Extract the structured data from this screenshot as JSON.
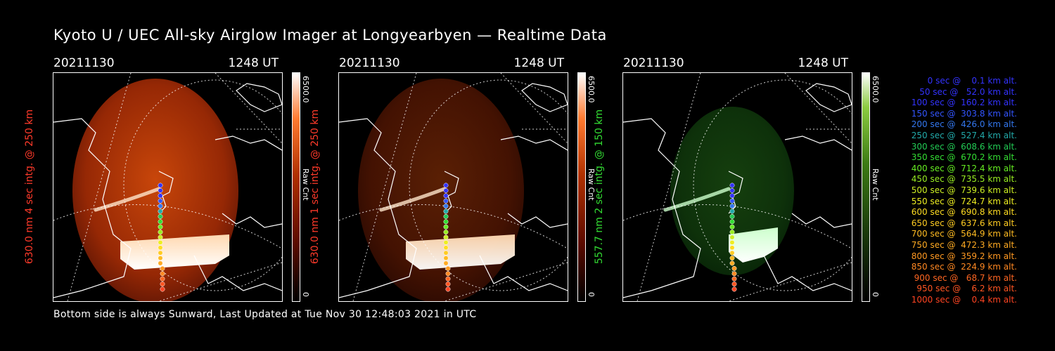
{
  "title": "Kyoto U / UEC All-sky Airglow Imager at Longyearbyen — Realtime Data",
  "footer": "Bottom side is always Sunward, Last Updated at Tue Nov 30 12:48:03 2021 in UTC",
  "panels": [
    {
      "date": "20211130",
      "time": "1248 UT",
      "ylabel": "630.0 nm 4 sec intg. @ 250 km",
      "label_color": "#ff3a2a",
      "cbar_max": "6500.0",
      "cbar_min": "0",
      "cbar_unit": "Raw Cnt",
      "scheme": "red",
      "intensity": 1.0
    },
    {
      "date": "20211130",
      "time": "1248 UT",
      "ylabel": "630.0 nm 1 sec intg. @ 250 km",
      "label_color": "#ff3a2a",
      "cbar_max": "6500.0",
      "cbar_min": "0",
      "cbar_unit": "Raw Cnt",
      "scheme": "red",
      "intensity": 0.45
    },
    {
      "date": "20211130",
      "time": "1248 UT",
      "ylabel": "557.7 nm 2 sec intg. @ 150 km",
      "label_color": "#33dd33",
      "cbar_max": "6500.0",
      "cbar_min": "0",
      "cbar_unit": "Raw Cnt",
      "scheme": "green",
      "intensity": 0.7
    }
  ],
  "legend": [
    {
      "text": "   0 sec @    0.1 km alt.",
      "color": "#3333ff"
    },
    {
      "text": "  50 sec @   52.0 km alt.",
      "color": "#3333ff"
    },
    {
      "text": " 100 sec @  160.2 km alt.",
      "color": "#3333ff"
    },
    {
      "text": " 150 sec @  303.8 km alt.",
      "color": "#3355ff"
    },
    {
      "text": " 200 sec @  426.0 km alt.",
      "color": "#3377ee"
    },
    {
      "text": " 250 sec @  527.4 km alt.",
      "color": "#22aaaa"
    },
    {
      "text": " 300 sec @  608.6 km alt.",
      "color": "#22cc55"
    },
    {
      "text": " 350 sec @  670.2 km alt.",
      "color": "#33dd33"
    },
    {
      "text": " 400 sec @  712.4 km alt.",
      "color": "#66ee22"
    },
    {
      "text": " 450 sec @  735.5 km alt.",
      "color": "#99ee22"
    },
    {
      "text": " 500 sec @  739.6 km alt.",
      "color": "#ccee22"
    },
    {
      "text": " 550 sec @  724.7 km alt.",
      "color": "#eeee22"
    },
    {
      "text": " 600 sec @  690.8 km alt.",
      "color": "#ffdd22"
    },
    {
      "text": " 650 sec @  637.6 km alt.",
      "color": "#ffcc22"
    },
    {
      "text": " 700 sec @  564.9 km alt.",
      "color": "#ffbb22"
    },
    {
      "text": " 750 sec @  472.3 km alt.",
      "color": "#ffaa22"
    },
    {
      "text": " 800 sec @  359.2 km alt.",
      "color": "#ff9922"
    },
    {
      "text": " 850 sec @  224.9 km alt.",
      "color": "#ff8822"
    },
    {
      "text": " 900 sec @   68.7 km alt.",
      "color": "#ff6622"
    },
    {
      "text": " 950 sec @    6.2 km alt.",
      "color": "#ff5522"
    },
    {
      "text": "1000 sec @    0.4 km alt.",
      "color": "#ff4422"
    }
  ]
}
